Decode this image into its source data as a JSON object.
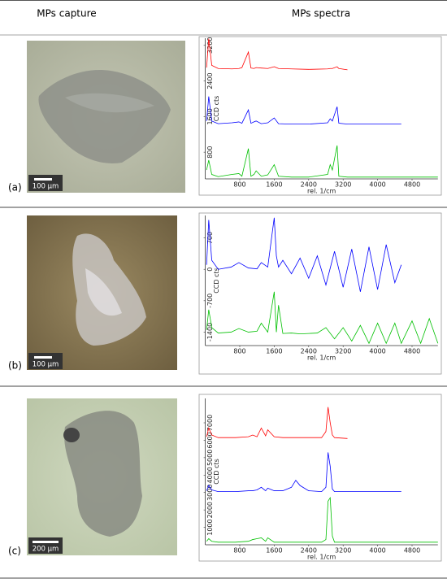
{
  "header": {
    "capture": "MPs capture",
    "spectra": "MPs spectra"
  },
  "rows": [
    {
      "label": "(a)",
      "scale_bar": "100 µm"
    },
    {
      "label": "(b)",
      "scale_bar": "100 µm"
    },
    {
      "label": "(c)",
      "scale_bar": "200 µm"
    }
  ],
  "chart_data": [
    {
      "type": "line",
      "x_label": "rel. 1/cm",
      "y_label": "CCD cts",
      "xlim": [
        0,
        5400
      ],
      "xticks": [
        800,
        1600,
        2400,
        3200,
        4000,
        4800
      ],
      "ylim": [
        200,
        3360
      ],
      "yticks": [
        800,
        1600,
        2400,
        3200
      ],
      "x": [
        30,
        80,
        150,
        300,
        620,
        780,
        850,
        1000,
        1060,
        1130,
        1180,
        1300,
        1450,
        1600,
        1700,
        2000,
        2400,
        2840,
        2900,
        2950,
        3060,
        3100,
        3300,
        3600,
        4000,
        4550,
        5000,
        5400
      ],
      "series": [
        {
          "color": "#ff0000",
          "values": [
            2700,
            3350,
            2750,
            2680,
            2670,
            2680,
            2700,
            3050,
            2690,
            2680,
            2700,
            2690,
            2680,
            2720,
            2680,
            2670,
            2660,
            2670,
            2680,
            2680,
            2720,
            2680,
            2650,
            null,
            null,
            null,
            null,
            null
          ]
        },
        {
          "color": "#0000ff",
          "values": [
            1500,
            2050,
            1500,
            1440,
            1460,
            1480,
            1450,
            1750,
            1450,
            1480,
            1500,
            1440,
            1460,
            1570,
            1440,
            1430,
            1430,
            1460,
            1550,
            1500,
            1820,
            1450,
            1430,
            1430,
            1430,
            1430,
            null,
            null
          ]
        },
        {
          "color": "#00c000",
          "values": [
            400,
            620,
            300,
            250,
            300,
            320,
            260,
            880,
            260,
            300,
            380,
            260,
            290,
            520,
            260,
            240,
            240,
            300,
            520,
            400,
            950,
            260,
            240,
            240,
            240,
            240,
            240,
            240
          ]
        }
      ]
    },
    {
      "type": "line",
      "x_label": "rel. 1/cm",
      "y_label": "CCD cts",
      "xlim": [
        0,
        5400
      ],
      "xticks": [
        800,
        1600,
        2400,
        3200,
        4000,
        4800
      ],
      "ylim": [
        -1700,
        1200
      ],
      "yticks": [
        700,
        0,
        -700,
        -1400
      ],
      "x": [
        30,
        80,
        150,
        300,
        600,
        780,
        1000,
        1200,
        1300,
        1450,
        1600,
        1650,
        1700,
        1800,
        2000,
        2200,
        2400,
        2600,
        2800,
        3000,
        3200,
        3400,
        3600,
        3800,
        4000,
        4200,
        4400,
        4550,
        4800,
        5000,
        5200,
        5400
      ],
      "series": [
        {
          "color": "#0000ff",
          "values": [
            100,
            1100,
            200,
            0,
            50,
            150,
            30,
            10,
            150,
            50,
            1150,
            300,
            50,
            200,
            -100,
            250,
            -200,
            300,
            -350,
            400,
            -400,
            450,
            -500,
            500,
            -450,
            550,
            -300,
            100,
            null,
            null,
            null,
            null
          ]
        },
        {
          "color": "#00c000",
          "values": [
            -1350,
            -900,
            -1300,
            -1420,
            -1400,
            -1320,
            -1400,
            -1380,
            -1200,
            -1400,
            -500,
            -1400,
            -800,
            -1430,
            -1420,
            -1440,
            -1430,
            -1420,
            -1300,
            -1550,
            -1300,
            -1600,
            -1250,
            -1650,
            -1200,
            -1650,
            -1200,
            -1650,
            -1150,
            -1650,
            -1100,
            -1650
          ]
        }
      ]
    },
    {
      "type": "line",
      "x_label": "rel. 1/cm",
      "y_label": "CCD cts",
      "xlim": [
        0,
        5400
      ],
      "xticks": [
        800,
        1600,
        2400,
        3200,
        4000,
        4800
      ],
      "ylim": [
        0,
        8400
      ],
      "yticks": [
        1000,
        2000,
        3000,
        4000,
        5000,
        6000,
        7000
      ],
      "x": [
        30,
        80,
        150,
        300,
        700,
        1000,
        1100,
        1200,
        1300,
        1400,
        1450,
        1600,
        1800,
        2000,
        2100,
        2200,
        2400,
        2700,
        2800,
        2850,
        2900,
        2950,
        3000,
        3300,
        3600,
        4000,
        4550,
        5000,
        5400
      ],
      "series": [
        {
          "color": "#ff0000",
          "values": [
            6200,
            6700,
            6300,
            6150,
            6150,
            6200,
            6300,
            6200,
            6700,
            6250,
            6600,
            6200,
            6150,
            6150,
            6150,
            6150,
            6150,
            6150,
            6500,
            7900,
            7000,
            6300,
            6150,
            6100,
            null,
            null,
            null,
            null,
            null
          ]
        },
        {
          "color": "#0000ff",
          "values": [
            3100,
            3400,
            3150,
            3050,
            3050,
            3100,
            3100,
            3150,
            3300,
            3100,
            3250,
            3100,
            3100,
            3300,
            3700,
            3400,
            3100,
            3050,
            3300,
            5300,
            4500,
            3200,
            3050,
            3050,
            3050,
            3050,
            3050,
            null,
            null
          ]
        },
        {
          "color": "#00c000",
          "values": [
            200,
            350,
            200,
            150,
            150,
            200,
            300,
            350,
            400,
            200,
            400,
            150,
            150,
            150,
            150,
            150,
            150,
            150,
            300,
            2500,
            2700,
            500,
            150,
            150,
            150,
            150,
            150,
            150,
            150
          ]
        }
      ]
    }
  ]
}
